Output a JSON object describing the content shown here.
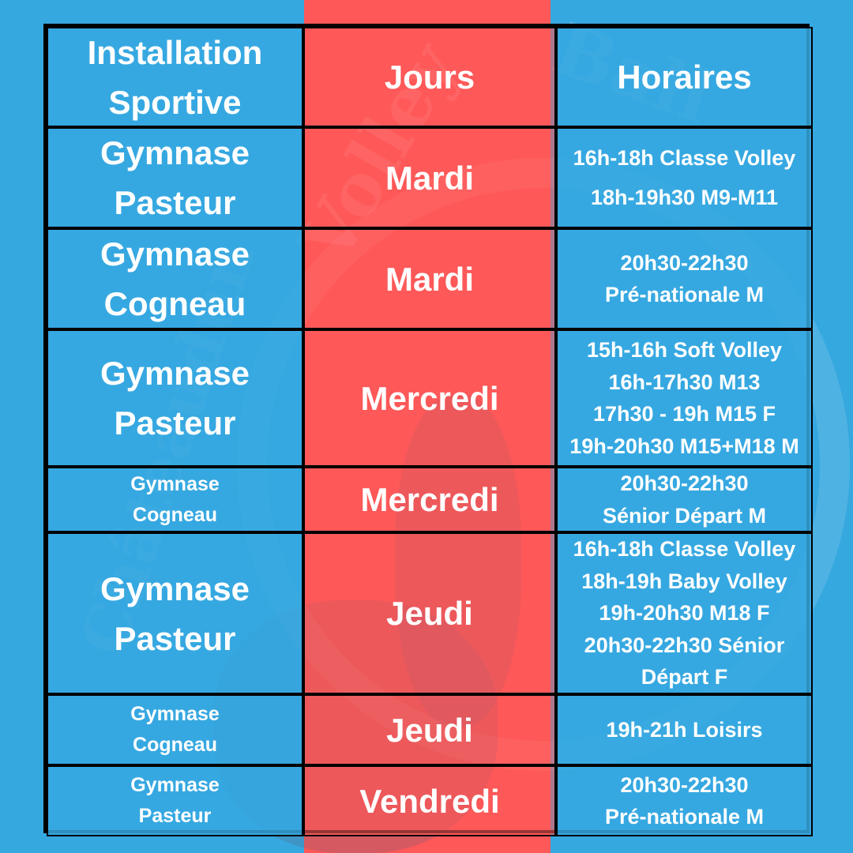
{
  "watermark": "Châteaudun Volley Ball",
  "colors": {
    "blue": "#36a8e0",
    "red": "#fe5859",
    "border": "#000000",
    "text": "#ffffff"
  },
  "headers": {
    "installation": [
      "Installation",
      "Sportive"
    ],
    "jours": "Jours",
    "horaires": "Horaires"
  },
  "rows": [
    {
      "installation": [
        "Gymnase",
        "Pasteur"
      ],
      "jour": "Mardi",
      "horaires": [
        "16h-18h Classe Volley",
        "18h-19h30 M9-M11"
      ]
    },
    {
      "installation": [
        "Gymnase",
        "Cogneau"
      ],
      "jour": "Mardi",
      "horaires": [
        "20h30-22h30",
        "Pré-nationale M"
      ]
    },
    {
      "installation": [
        "Gymnase",
        "Pasteur"
      ],
      "jour": "Mercredi",
      "horaires": [
        "15h-16h Soft Volley",
        "16h-17h30 M13",
        "17h30 - 19h M15 F",
        "19h-20h30 M15+M18 M"
      ]
    },
    {
      "installation": [
        "Gymnase",
        "Cogneau"
      ],
      "jour": "Mercredi",
      "horaires": [
        "20h30-22h30",
        "Sénior Départ M"
      ]
    },
    {
      "installation": [
        "Gymnase",
        "Pasteur"
      ],
      "jour": "Jeudi",
      "horaires": [
        "16h-18h Classe Volley",
        "18h-19h Baby Volley",
        "19h-20h30 M18 F",
        "20h30-22h30 Sénior",
        "Départ F"
      ]
    },
    {
      "installation": [
        "Gymnase",
        "Cogneau"
      ],
      "jour": "Jeudi",
      "horaires": [
        "19h-21h Loisirs"
      ]
    },
    {
      "installation": [
        "Gymnase",
        "Pasteur"
      ],
      "jour": "Vendredi",
      "horaires": [
        "20h30-22h30",
        "Pré-nationale M"
      ]
    }
  ]
}
